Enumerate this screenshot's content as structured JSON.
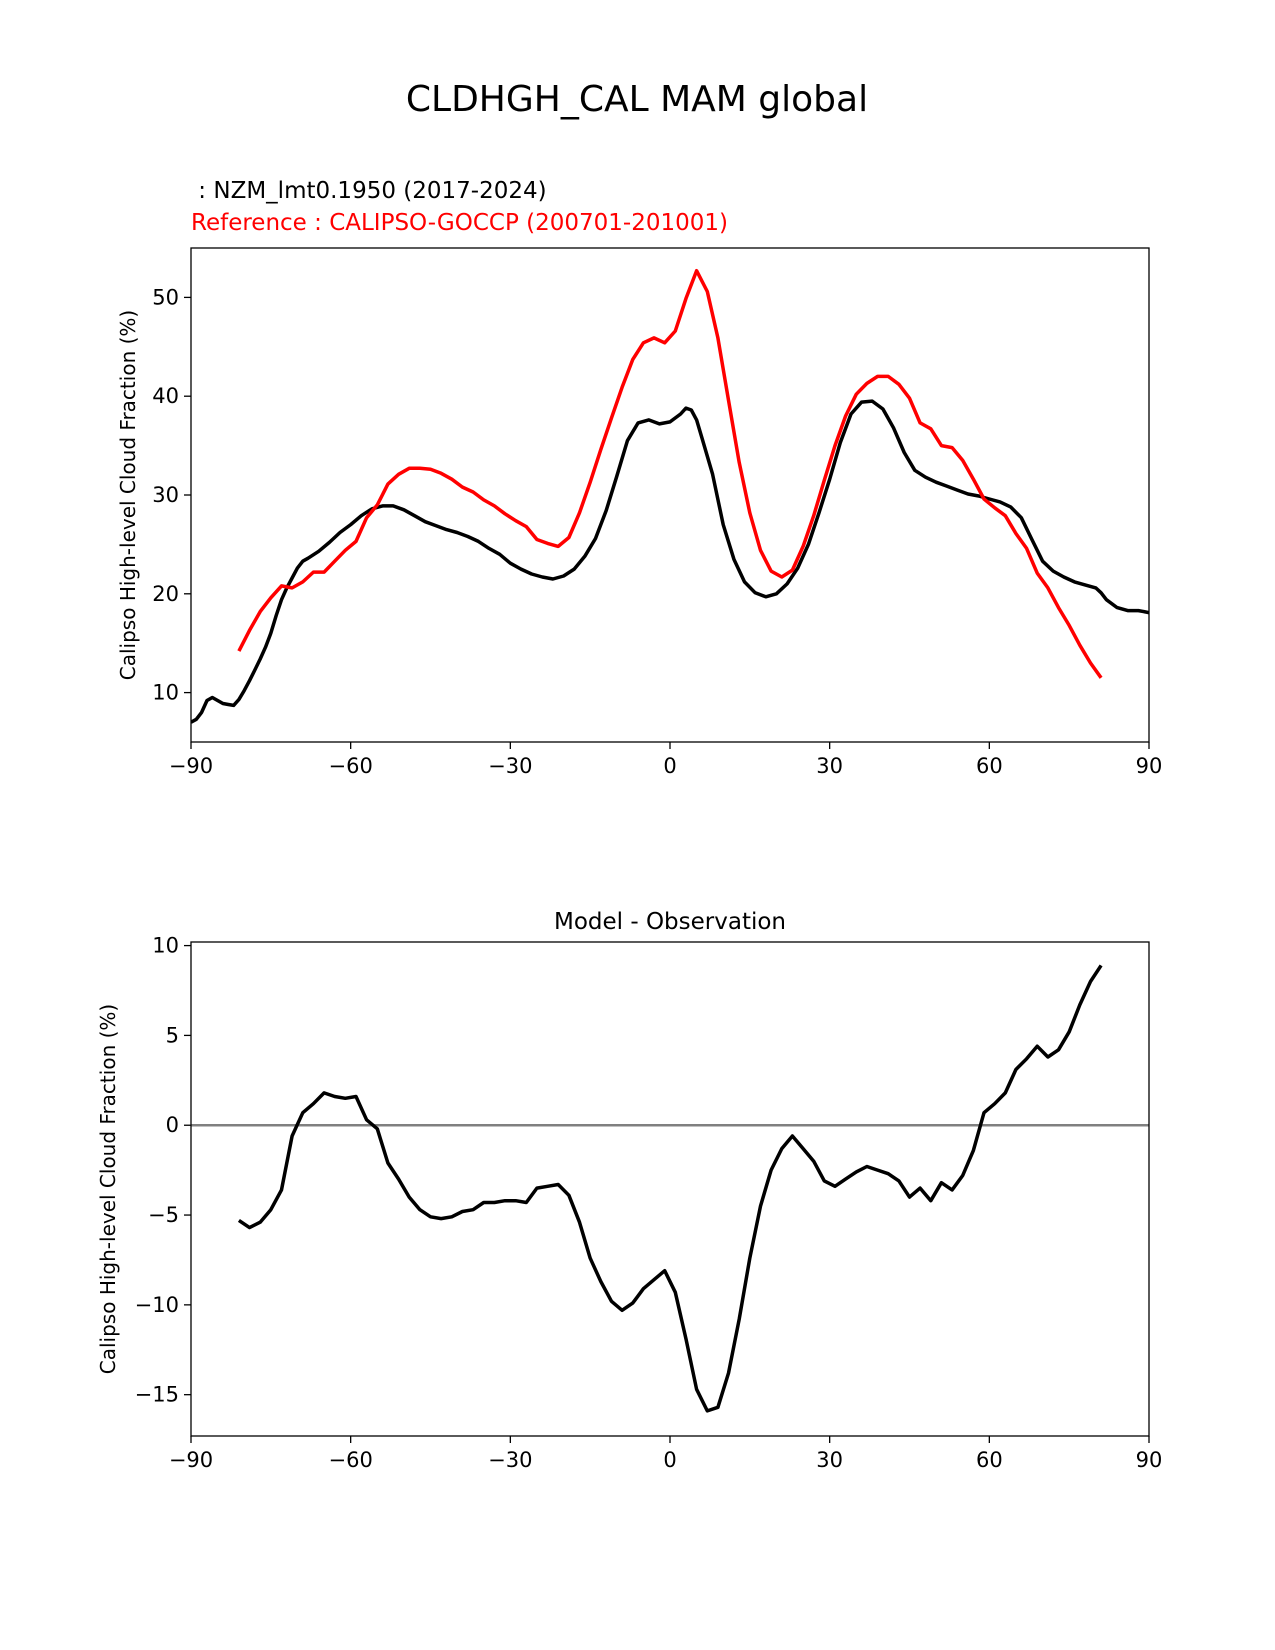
{
  "figure_title": "CLDHGH_CAL MAM global",
  "model_label": " : NZM_lmt0.1950 (2017-2024)",
  "reference_label": "Reference : CALIPSO-GOCCP (200701-201001)",
  "colors": {
    "model": "#000000",
    "reference": "#ff0000",
    "zero_line": "#808080"
  },
  "chart_data": [
    {
      "type": "line",
      "title": "",
      "xlabel": "",
      "ylabel": "Calipso High-level Cloud Fraction (%)",
      "xlim": [
        -90,
        90
      ],
      "ylim": [
        5,
        55
      ],
      "xticks": [
        -90,
        -60,
        -30,
        0,
        30,
        60,
        90
      ],
      "xtick_labels": [
        "−90",
        "−60",
        "−30",
        "0",
        "30",
        "60",
        "90"
      ],
      "yticks": [
        10,
        20,
        30,
        40,
        50
      ],
      "ytick_labels": [
        "10",
        "20",
        "30",
        "40",
        "50"
      ],
      "series": [
        {
          "name": "model",
          "color": "#000000",
          "x": [
            -90,
            -89,
            -88,
            -87,
            -86,
            -85,
            -84,
            -83,
            -82,
            -81,
            -80,
            -79,
            -78,
            -77,
            -76,
            -75,
            -74,
            -73,
            -72,
            -71,
            -70,
            -69,
            -68,
            -66,
            -64,
            -62,
            -60,
            -58,
            -56,
            -54,
            -52,
            -50,
            -48,
            -46,
            -44,
            -42,
            -40,
            -38,
            -36,
            -34,
            -32,
            -30,
            -28,
            -26,
            -24,
            -22,
            -20,
            -18,
            -16,
            -14,
            -12,
            -10,
            -8,
            -6,
            -4,
            -2,
            0,
            2,
            3,
            4,
            5,
            6,
            8,
            10,
            12,
            14,
            16,
            18,
            20,
            22,
            24,
            26,
            28,
            30,
            32,
            34,
            36,
            38,
            40,
            42,
            44,
            46,
            48,
            50,
            52,
            54,
            56,
            58,
            60,
            62,
            64,
            66,
            68,
            70,
            72,
            74,
            76,
            78,
            80,
            81,
            82,
            84,
            86,
            88,
            90
          ],
          "y": [
            7.0,
            7.3,
            8.0,
            9.2,
            9.5,
            9.2,
            8.9,
            8.8,
            8.7,
            9.3,
            10.2,
            11.2,
            12.3,
            13.4,
            14.6,
            16.0,
            17.8,
            19.4,
            20.6,
            21.6,
            22.6,
            23.3,
            23.6,
            24.3,
            25.2,
            26.2,
            27.0,
            27.9,
            28.6,
            28.9,
            28.9,
            28.5,
            27.9,
            27.3,
            26.9,
            26.5,
            26.2,
            25.8,
            25.3,
            24.6,
            24.0,
            23.1,
            22.5,
            22.0,
            21.7,
            21.5,
            21.8,
            22.5,
            23.8,
            25.6,
            28.4,
            31.9,
            35.5,
            37.3,
            37.6,
            37.2,
            37.4,
            38.2,
            38.8,
            38.6,
            37.6,
            35.8,
            32.1,
            27.0,
            23.5,
            21.2,
            20.1,
            19.7,
            20.0,
            21.0,
            22.6,
            25.0,
            28.2,
            31.6,
            35.3,
            38.2,
            39.4,
            39.5,
            38.7,
            36.8,
            34.3,
            32.5,
            31.8,
            31.3,
            30.9,
            30.5,
            30.1,
            29.9,
            29.6,
            29.3,
            28.8,
            27.7,
            25.5,
            23.3,
            22.3,
            21.7,
            21.2,
            20.9,
            20.6,
            20.1,
            19.4,
            18.6,
            18.3,
            18.3,
            18.1
          ]
        },
        {
          "name": "reference",
          "color": "#ff0000",
          "x": [
            -81,
            -79,
            -77,
            -75,
            -73,
            -71,
            -69,
            -67,
            -65,
            -63,
            -61,
            -59,
            -57,
            -55,
            -53,
            -51,
            -49,
            -47,
            -45,
            -43,
            -41,
            -39,
            -37,
            -35,
            -33,
            -31,
            -29,
            -27,
            -25,
            -23,
            -21,
            -19,
            -17,
            -15,
            -13,
            -11,
            -9,
            -7,
            -5,
            -3,
            -1,
            1,
            3,
            5,
            7,
            9,
            11,
            13,
            15,
            17,
            19,
            21,
            23,
            25,
            27,
            29,
            31,
            33,
            35,
            37,
            39,
            41,
            43,
            45,
            47,
            49,
            51,
            53,
            55,
            57,
            59,
            61,
            63,
            65,
            67,
            69,
            71,
            73,
            75,
            77,
            79,
            81
          ],
          "y": [
            14.2,
            16.3,
            18.2,
            19.6,
            20.8,
            20.6,
            21.2,
            22.2,
            22.2,
            23.3,
            24.4,
            25.3,
            27.7,
            29.0,
            31.1,
            32.1,
            32.7,
            32.7,
            32.6,
            32.2,
            31.6,
            30.8,
            30.3,
            29.5,
            28.9,
            28.1,
            27.4,
            26.8,
            25.5,
            25.1,
            24.8,
            25.7,
            28.2,
            31.3,
            34.6,
            37.8,
            40.9,
            43.7,
            45.4,
            45.9,
            45.4,
            46.6,
            49.9,
            52.7,
            50.6,
            45.9,
            39.6,
            33.3,
            28.2,
            24.4,
            22.3,
            21.7,
            22.4,
            24.8,
            27.9,
            31.5,
            35.0,
            38.0,
            40.2,
            41.3,
            42.0,
            42.0,
            41.2,
            39.8,
            37.3,
            36.7,
            35.0,
            34.8,
            33.5,
            31.6,
            29.6,
            28.7,
            27.9,
            26.1,
            24.6,
            22.1,
            20.6,
            18.6,
            16.8,
            14.8,
            13.0,
            11.5
          ]
        }
      ]
    },
    {
      "type": "line",
      "title": "Model - Observation",
      "xlabel": "",
      "ylabel": "Calipso High-level Cloud Fraction (%)",
      "xlim": [
        -90,
        90
      ],
      "ylim": [
        -17.3,
        10.2
      ],
      "xticks": [
        -90,
        -60,
        -30,
        0,
        30,
        60,
        90
      ],
      "xtick_labels": [
        "−90",
        "−60",
        "−30",
        "0",
        "30",
        "60",
        "90"
      ],
      "yticks": [
        -15,
        -10,
        -5,
        0,
        5,
        10
      ],
      "ytick_labels": [
        "−15",
        "−10",
        "−5",
        "0",
        "5",
        "10"
      ],
      "zero_line": 0,
      "series": [
        {
          "name": "difference",
          "color": "#000000",
          "x": [
            -81,
            -79,
            -77,
            -75,
            -73,
            -71,
            -69,
            -67,
            -65,
            -63,
            -61,
            -59,
            -57,
            -55,
            -53,
            -51,
            -49,
            -47,
            -45,
            -43,
            -41,
            -39,
            -37,
            -35,
            -33,
            -31,
            -29,
            -27,
            -25,
            -23,
            -21,
            -19,
            -17,
            -15,
            -13,
            -11,
            -9,
            -7,
            -5,
            -3,
            -1,
            1,
            3,
            5,
            7,
            9,
            11,
            13,
            15,
            17,
            19,
            21,
            23,
            25,
            27,
            29,
            31,
            33,
            35,
            37,
            39,
            41,
            43,
            45,
            47,
            49,
            51,
            53,
            55,
            57,
            59,
            61,
            63,
            65,
            67,
            69,
            71,
            73,
            75,
            77,
            79,
            81
          ],
          "y": [
            -5.3,
            -5.7,
            -5.4,
            -4.7,
            -3.6,
            -0.6,
            0.7,
            1.2,
            1.8,
            1.6,
            1.5,
            1.6,
            0.3,
            -0.2,
            -2.1,
            -3.0,
            -4.0,
            -4.7,
            -5.1,
            -5.2,
            -5.1,
            -4.8,
            -4.7,
            -4.3,
            -4.3,
            -4.2,
            -4.2,
            -4.3,
            -3.5,
            -3.4,
            -3.3,
            -3.9,
            -5.4,
            -7.4,
            -8.7,
            -9.8,
            -10.3,
            -9.9,
            -9.1,
            -8.6,
            -8.1,
            -9.3,
            -11.9,
            -14.7,
            -15.9,
            -15.7,
            -13.8,
            -10.8,
            -7.4,
            -4.5,
            -2.5,
            -1.3,
            -0.6,
            -1.3,
            -2.0,
            -3.1,
            -3.4,
            -3.0,
            -2.6,
            -2.3,
            -2.5,
            -2.7,
            -3.1,
            -4.0,
            -3.5,
            -4.2,
            -3.2,
            -3.6,
            -2.8,
            -1.4,
            0.7,
            1.2,
            1.8,
            3.1,
            3.7,
            4.4,
            3.8,
            4.2,
            5.2,
            6.7,
            8.0,
            8.9
          ]
        }
      ]
    }
  ]
}
